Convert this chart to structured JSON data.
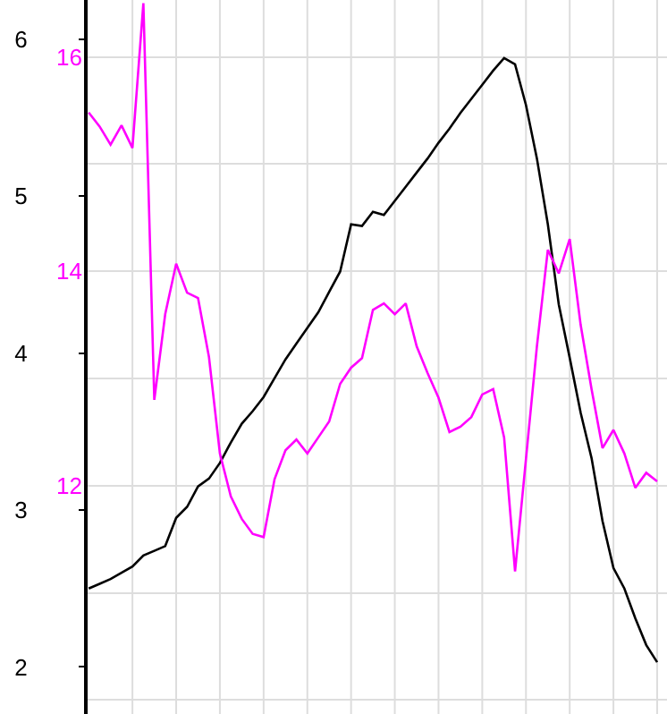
{
  "chart_data": {
    "type": "line",
    "categories": [
      null,
      null,
      null,
      null,
      null,
      null,
      null,
      null,
      null,
      null,
      null,
      null,
      null,
      null,
      null,
      null,
      null,
      null,
      null,
      null,
      null,
      null,
      null,
      null,
      null,
      null,
      null,
      null,
      null,
      null,
      null,
      null,
      null,
      null,
      null,
      null,
      null,
      null,
      null,
      null,
      null,
      null,
      null,
      null,
      null,
      null,
      null,
      null,
      null,
      null,
      null,
      null,
      null
    ],
    "ylim": [
      1.7,
      6.25
    ],
    "yticks": [
      2,
      3,
      4,
      5,
      6
    ],
    "y2lim": [
      9.87,
      16.53
    ],
    "y2ticks": [
      {
        "value": 10,
        "label": null
      },
      {
        "value": 11,
        "label": null
      },
      12,
      {
        "value": 13,
        "label": null
      },
      14,
      {
        "value": 15,
        "label": null
      },
      16
    ],
    "grid": true,
    "marker": "none",
    "line_style": "solid",
    "series": [
      {
        "color": "#000000",
        "values": [
          2.5,
          2.53,
          2.56,
          2.6,
          2.64,
          2.71,
          2.74,
          2.77,
          2.95,
          3.02,
          3.15,
          3.2,
          3.3,
          3.43,
          3.55,
          3.63,
          3.72,
          3.84,
          3.96,
          4.06,
          4.16,
          4.26,
          4.39,
          4.52,
          4.82,
          4.81,
          4.9,
          4.88,
          4.97,
          5.06,
          5.15,
          5.24,
          5.34,
          5.43,
          5.53,
          5.62,
          5.71,
          5.8,
          5.88,
          5.84,
          5.58,
          5.24,
          4.82,
          4.31,
          3.97,
          3.62,
          3.33,
          2.93,
          2.63,
          2.5,
          2.31,
          2.14,
          2.03
        ]
      },
      {
        "color": "#ff00ff",
        "axis": "y2",
        "values": [
          15.48,
          15.35,
          15.18,
          15.36,
          15.15,
          16.5,
          12.8,
          13.6,
          14.07,
          13.8,
          13.75,
          13.2,
          12.3,
          11.9,
          11.69,
          11.55,
          11.52,
          12.06,
          12.33,
          12.43,
          12.3,
          12.45,
          12.6,
          12.95,
          13.1,
          13.19,
          13.64,
          13.7,
          13.6,
          13.7,
          13.3,
          13.05,
          12.82,
          12.5,
          12.55,
          12.64,
          12.85,
          12.9,
          12.45,
          11.2,
          12.25,
          13.3,
          14.2,
          13.98,
          14.3,
          13.5,
          12.9,
          12.35,
          12.52,
          12.3,
          11.98,
          12.12,
          12.04
        ]
      }
    ]
  }
}
